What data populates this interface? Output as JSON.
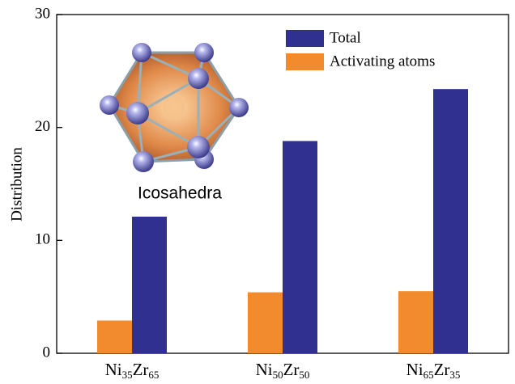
{
  "chart_data": {
    "type": "bar",
    "ylabel": "Distribution",
    "annotation": "Icosahedra",
    "categories": [
      "Ni35Zr65",
      "Ni50Zr50",
      "Ni65Zr35"
    ],
    "series": [
      {
        "name": "Activating atoms",
        "color": "#f28a2e",
        "values": [
          2.9,
          5.4,
          5.5
        ]
      },
      {
        "name": "Total",
        "color": "#303090",
        "values": [
          12.1,
          18.8,
          23.4
        ]
      }
    ],
    "legend_order": [
      "Total",
      "Activating atoms"
    ],
    "ylim": [
      0,
      30
    ],
    "yticks": [
      0,
      10,
      20,
      30
    ],
    "grid": false
  }
}
